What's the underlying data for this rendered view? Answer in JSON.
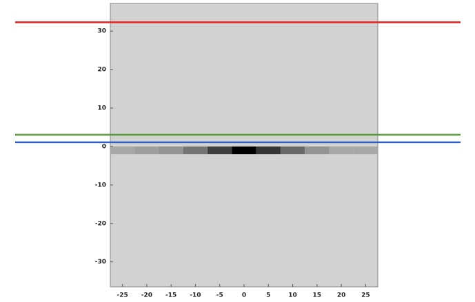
{
  "chart_data": {
    "type": "heatmap",
    "x": [
      -25,
      -20,
      -15,
      -10,
      -5,
      0,
      5,
      10,
      15,
      20,
      25
    ],
    "values": [
      0.2,
      0.25,
      0.3,
      0.45,
      0.7,
      1,
      0.75,
      0.5,
      0.3,
      0.2,
      0.2
    ],
    "xlim": [
      -27.5,
      27.5
    ],
    "ylim": [
      -36.5,
      37.2
    ],
    "xticks": [
      -25,
      -20,
      -15,
      -10,
      -5,
      0,
      5,
      10,
      15,
      20,
      25
    ],
    "yticks": [
      -30,
      -20,
      -10,
      0,
      10,
      20,
      30
    ],
    "hlines": [
      {
        "value": 32.3,
        "color": "#e8201e"
      },
      {
        "value": 3.05,
        "color": "#5a9e3c"
      },
      {
        "value": 1.08,
        "color": "#2e5fc4"
      }
    ]
  }
}
